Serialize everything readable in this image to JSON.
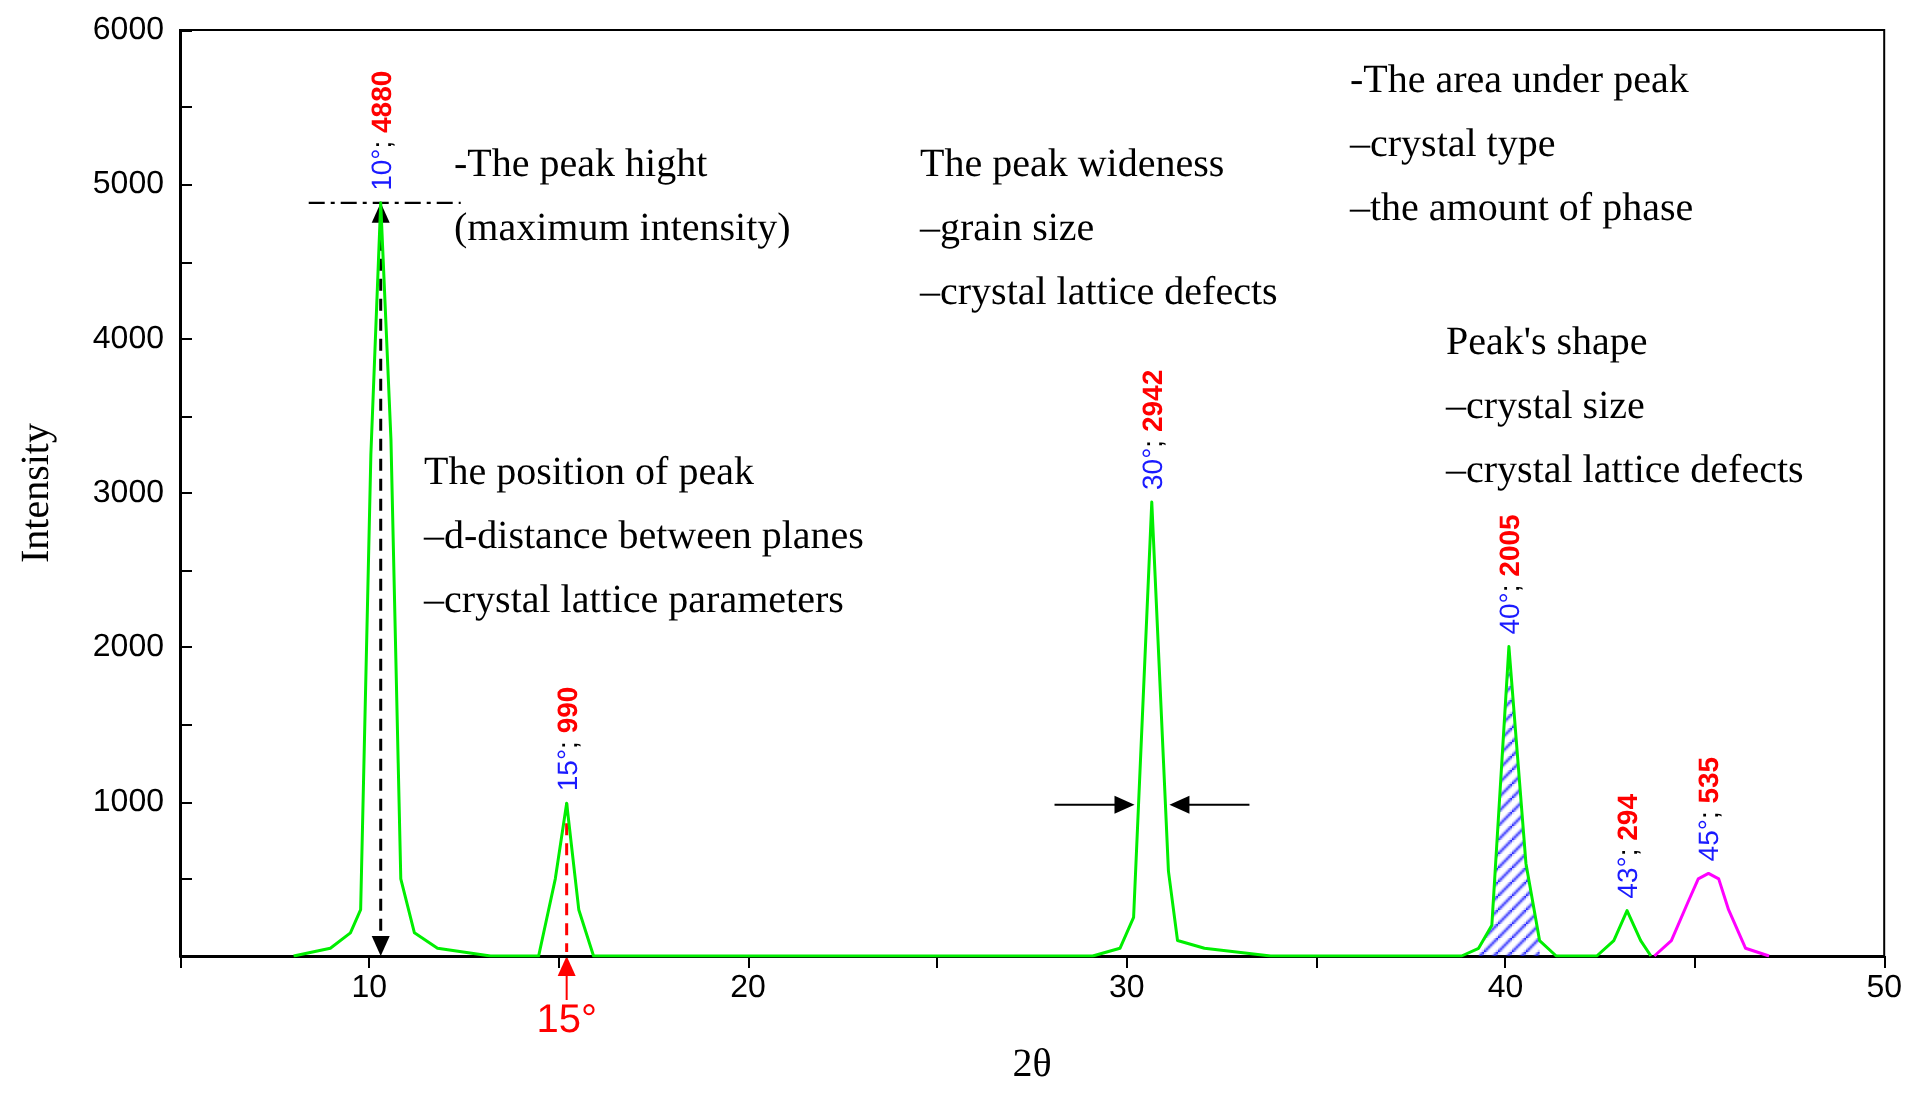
{
  "chart_data": {
    "type": "line",
    "xlabel": "2θ",
    "ylabel": "Intensity",
    "xlim": [
      5,
      50
    ],
    "ylim": [
      0,
      6000
    ],
    "xticks": [
      {
        "value": 5,
        "label": null
      },
      10,
      {
        "value": 15,
        "label": null
      },
      20,
      {
        "value": 25,
        "label": null
      },
      30,
      {
        "value": 35,
        "label": null
      },
      40,
      {
        "value": 45,
        "label": null
      },
      50
    ],
    "yticks": [
      {
        "value": 0,
        "label": null
      },
      {
        "value": 500,
        "label": null
      },
      1000,
      {
        "value": 1500,
        "label": null
      },
      2000,
      {
        "value": 2500,
        "label": null
      },
      3000,
      {
        "value": 3500,
        "label": null
      },
      4000,
      {
        "value": 4500,
        "label": null
      },
      5000,
      {
        "value": 5500,
        "label": null
      },
      6000
    ],
    "grid": false,
    "marker": "none",
    "series": [
      {
        "color": "#00ee00",
        "x": [
          8.0,
          8.97,
          9.5,
          9.77,
          10.04,
          10.3,
          10.57,
          10.83,
          11.19,
          11.8,
          13.2,
          14.47,
          14.91,
          15.21,
          15.53,
          15.92,
          29.1,
          29.82,
          30.18,
          30.66,
          31.1,
          31.34,
          32.05,
          33.8,
          38.84,
          39.29,
          39.64,
          40.09,
          40.54,
          40.9,
          41.34,
          42.41,
          42.86,
          43.21,
          43.57,
          43.84
        ],
        "values": [
          0,
          50,
          150,
          300,
          3250,
          4880,
          3350,
          500,
          150,
          50,
          0,
          0,
          500,
          990,
          300,
          0,
          0,
          50,
          250,
          2942,
          550,
          100,
          50,
          0,
          0,
          50,
          200,
          2005,
          600,
          100,
          0,
          0,
          100,
          294,
          100,
          0
        ],
        "value_labels": [
          null,
          null,
          null,
          null,
          null,
          "10°; 4880",
          null,
          null,
          null,
          null,
          null,
          null,
          null,
          "15°; 990",
          null,
          null,
          null,
          null,
          null,
          "30°; 2942",
          null,
          null,
          null,
          null,
          null,
          null,
          null,
          "40°; 2005",
          null,
          null,
          null,
          null,
          null,
          "43°; 294",
          null,
          null
        ]
      },
      {
        "color": "#ff00ff",
        "x": [
          43.93,
          44.38,
          44.82,
          45.09,
          45.36,
          45.63,
          45.89,
          46.34,
          46.96
        ],
        "values": [
          0,
          100,
          350,
          500,
          535,
          500,
          300,
          50,
          0
        ],
        "value_labels": [
          null,
          null,
          null,
          null,
          "45°; 535",
          null,
          null,
          null,
          null
        ]
      },
      {
        "type": "area",
        "color": "#1a1aff",
        "x": [
          39.29,
          39.64,
          40.09,
          40.54,
          40.9
        ],
        "values": [
          50,
          200,
          2005,
          600,
          100
        ]
      }
    ],
    "annotations": [
      "-The peak hight\n(maximum intensity)",
      "The peak wideness\n–grain size\n–crystal lattice defects",
      "-The area under peak\n–crystal type\n–the amount of phase",
      "Peak's shape\n–crystal size\n–crystal lattice defects",
      "The position of peak\n–d-distance between planes\n–crystal lattice parameters",
      {
        "text": "15°",
        "x": 15.21,
        "y": 990
      }
    ]
  }
}
